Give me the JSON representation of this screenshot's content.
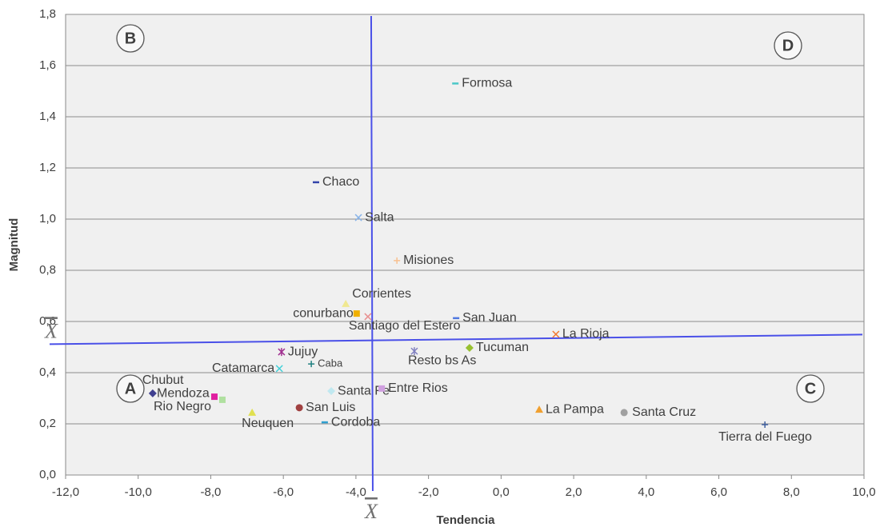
{
  "chart_data": {
    "type": "scatter",
    "x_label": "Tendencia",
    "y_label": "Magnitud",
    "xlim": [
      -12,
      10
    ],
    "ylim": [
      0,
      1.8
    ],
    "xticks": [
      {
        "value": -12,
        "label": "-12,0"
      },
      {
        "value": -10,
        "label": "-10,0"
      },
      {
        "value": -8,
        "label": "-8,0"
      },
      {
        "value": -6,
        "label": "-6,0"
      },
      {
        "value": -4,
        "label": "-4,0"
      },
      {
        "value": -2,
        "label": "-2,0"
      },
      {
        "value": 0,
        "label": "0,0"
      },
      {
        "value": 2,
        "label": "2,0"
      },
      {
        "value": 4,
        "label": "4,0"
      },
      {
        "value": 6,
        "label": "6,0"
      },
      {
        "value": 8,
        "label": "8,0"
      },
      {
        "value": 10,
        "label": "10,0"
      }
    ],
    "yticks": [
      {
        "value": 0,
        "label": "0,0"
      },
      {
        "value": 0.2,
        "label": "0,2"
      },
      {
        "value": 0.4,
        "label": "0,4"
      },
      {
        "value": 0.6,
        "label": "0,6"
      },
      {
        "value": 0.8,
        "label": "0,8"
      },
      {
        "value": 1.0,
        "label": "1,0"
      },
      {
        "value": 1.2,
        "label": "1,2"
      },
      {
        "value": 1.4,
        "label": "1,4"
      },
      {
        "value": 1.6,
        "label": "1,6"
      },
      {
        "value": 1.8,
        "label": "1,8"
      }
    ],
    "grid": true,
    "mean_x": -3.58,
    "mean_y": 0.53,
    "mean_line_color": "#4a50e8",
    "mean_label": "X",
    "quadrants": [
      "A",
      "B",
      "C",
      "D"
    ],
    "points": [
      {
        "label": "Formosa",
        "x": -1.26,
        "y": 1.53,
        "color": "#4bc8c8",
        "marker": "dash"
      },
      {
        "label": "Chaco",
        "x": -5.1,
        "y": 1.144,
        "color": "#3344aa",
        "marker": "dash"
      },
      {
        "label": "Salta",
        "x": -3.93,
        "y": 1.006,
        "color": "#8ab4e8",
        "marker": "x"
      },
      {
        "label": "Misiones",
        "x": -2.87,
        "y": 0.838,
        "color": "#f8c090",
        "marker": "plus"
      },
      {
        "label": "Corrientes",
        "x": -4.28,
        "y": 0.669,
        "color": "#f0e890",
        "marker": "triangle"
      },
      {
        "label": "conurbano",
        "x": -3.98,
        "y": 0.631,
        "color": "#f0b000",
        "marker": "square"
      },
      {
        "label": "Santiago del Estero",
        "x": -3.67,
        "y": 0.619,
        "color": "#e89090",
        "marker": "x"
      },
      {
        "label": "San Juan",
        "x": -1.24,
        "y": 0.613,
        "color": "#5078e0",
        "marker": "dash"
      },
      {
        "label": "La Rioja",
        "x": 1.51,
        "y": 0.55,
        "color": "#f07830",
        "marker": "x"
      },
      {
        "label": "Tucuman",
        "x": -0.87,
        "y": 0.497,
        "color": "#98c030",
        "marker": "diamond"
      },
      {
        "label": "Resto bs As",
        "x": -2.39,
        "y": 0.484,
        "color": "#8080c0",
        "marker": "star"
      },
      {
        "label": "Jujuy",
        "x": -6.05,
        "y": 0.481,
        "color": "#a03090",
        "marker": "star"
      },
      {
        "label": "Catamarca",
        "x": -6.11,
        "y": 0.416,
        "color": "#40d0d8",
        "marker": "x"
      },
      {
        "label": "Caba",
        "x": -5.23,
        "y": 0.434,
        "color": "#208080",
        "marker": "plus"
      },
      {
        "label": "Santa Fe",
        "x": -4.68,
        "y": 0.328,
        "color": "#c0e8f0",
        "marker": "diamond"
      },
      {
        "label": "Entre Rios",
        "x": -3.29,
        "y": 0.338,
        "color": "#d0a0e0",
        "marker": "square"
      },
      {
        "label": "Chubut",
        "x": -9.6,
        "y": 0.319,
        "color": "#404090",
        "marker": "diamond"
      },
      {
        "label": "Mendoza",
        "x": -7.9,
        "y": 0.306,
        "color": "#e020a0",
        "marker": "square"
      },
      {
        "label": "Rio Negro",
        "x": -7.68,
        "y": 0.294,
        "color": "#b0e0a0",
        "marker": "square"
      },
      {
        "label": "San Luis",
        "x": -5.56,
        "y": 0.263,
        "color": "#a04040",
        "marker": "circle"
      },
      {
        "label": "Neuquen",
        "x": -6.86,
        "y": 0.244,
        "color": "#e0e050",
        "marker": "triangle"
      },
      {
        "label": "Cordoba",
        "x": -4.86,
        "y": 0.206,
        "color": "#30a0d0",
        "marker": "dash"
      },
      {
        "label": "La Pampa",
        "x": 1.05,
        "y": 0.256,
        "color": "#f0a030",
        "marker": "triangle"
      },
      {
        "label": "Santa Cruz",
        "x": 3.39,
        "y": 0.244,
        "color": "#a0a0a0",
        "marker": "circle"
      },
      {
        "label": "Tierra del Fuego",
        "x": 7.27,
        "y": 0.197,
        "color": "#4060a0",
        "marker": "plus"
      }
    ]
  }
}
